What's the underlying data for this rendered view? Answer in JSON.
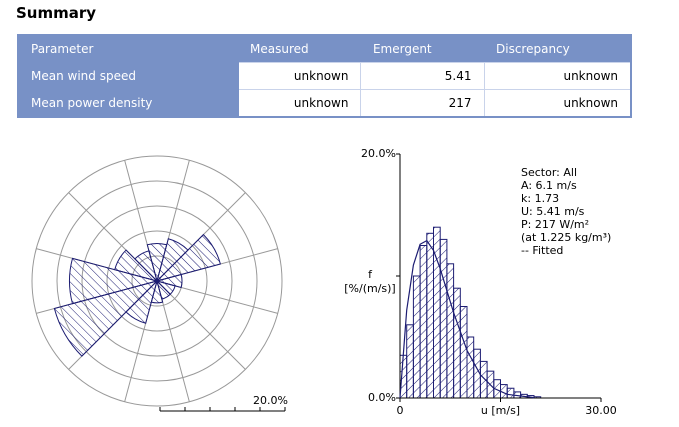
{
  "header": {
    "title": "Summary"
  },
  "table": {
    "columns": [
      "Parameter",
      "Measured",
      "Emergent",
      "Discrepancy"
    ],
    "rows": [
      [
        "Mean wind speed",
        "unknown",
        5.41,
        "unknown"
      ],
      [
        "Mean power density",
        "unknown",
        217,
        "unknown"
      ]
    ]
  },
  "chart_data": [
    {
      "type": "polar_bar",
      "values": [
        6,
        7,
        10.5,
        4,
        3,
        3,
        3.5,
        7,
        17,
        14,
        7,
        5
      ],
      "color": "#1c1c72",
      "rlim": [
        0,
        20
      ],
      "rticks": [
        {
          "value": 4,
          "label": null
        },
        {
          "value": 8,
          "label": null
        },
        {
          "value": 12,
          "label": null
        },
        {
          "value": 16,
          "label": null
        },
        {
          "value": 20,
          "label": "20.0%"
        }
      ]
    },
    {
      "type": "histogram",
      "color": "#1c1c72",
      "bins": [
        0,
        1,
        2,
        3,
        4,
        5,
        6,
        7,
        8,
        9,
        10,
        11,
        12,
        13,
        14,
        15,
        16,
        17,
        18,
        19,
        20,
        21
      ],
      "values": [
        3.5,
        6,
        10,
        12.5,
        13.5,
        14,
        13,
        11,
        9,
        7.5,
        5,
        4,
        3,
        2.2,
        1.5,
        1.1,
        0.8,
        0.5,
        0.3,
        0.2,
        0.1
      ],
      "xlim": [
        0,
        30
      ],
      "ylim": [
        0,
        20
      ],
      "xticks": [
        0,
        {
          "value": 15,
          "label": null
        },
        {
          "value": 30,
          "label": "30.00"
        }
      ],
      "yticks": [
        {
          "value": 0,
          "label": "0.0%"
        },
        {
          "value": 10,
          "label": null
        },
        {
          "value": 20,
          "label": "20.0%"
        }
      ],
      "xlabel": "u [m/s]",
      "ylabel": [
        "f",
        "[%/(m/s)]"
      ],
      "annotations": [
        "Sector: All",
        "A: 6.1 m/s",
        "k: 1.73",
        "U: 5.41 m/s",
        "P: 217 W/m²",
        "(at 1.225 kg/m³)",
        "-- Fitted"
      ],
      "fit": {
        "x": [
          0,
          1,
          2,
          3,
          4,
          5,
          6,
          7,
          8,
          10,
          12,
          14,
          16,
          20
        ],
        "values": [
          0,
          7.2,
          10.9,
          12.6,
          12.9,
          12.1,
          10.6,
          8.8,
          7.0,
          3.9,
          1.9,
          0.8,
          0.3,
          0.03
        ]
      }
    }
  ]
}
